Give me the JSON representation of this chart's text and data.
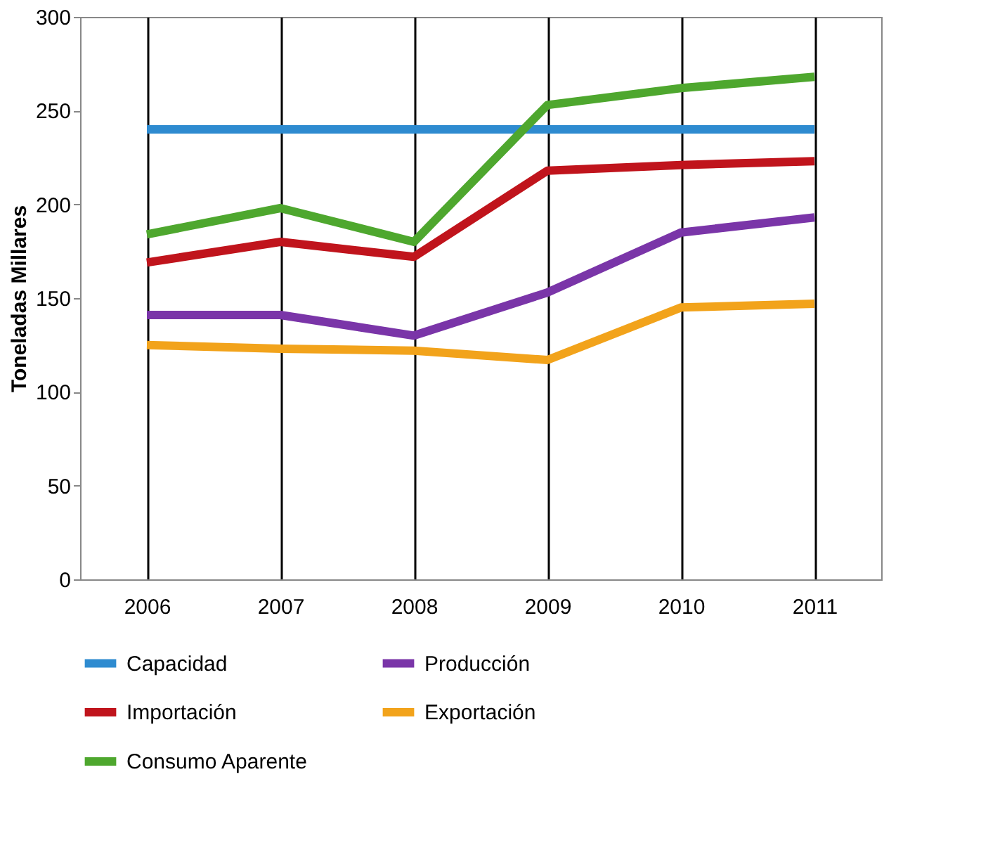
{
  "chart_data": {
    "type": "line",
    "ylabel": "Toneladas  Millares",
    "categories": [
      "2006",
      "2007",
      "2008",
      "2009",
      "2010",
      "2011"
    ],
    "series": [
      {
        "name": "Capacidad",
        "color": "#2e8bd0",
        "values": [
          240,
          240,
          240,
          240,
          240,
          240
        ]
      },
      {
        "name": "Producción",
        "color": "#7a35a8",
        "values": [
          141,
          141,
          130,
          153,
          185,
          193
        ]
      },
      {
        "name": "Importación",
        "color": "#c0141c",
        "values": [
          169,
          180,
          172,
          218,
          221,
          223
        ]
      },
      {
        "name": "Exportación",
        "color": "#f2a31b",
        "values": [
          125,
          123,
          122,
          117,
          145,
          147
        ]
      },
      {
        "name": "Consumo Aparente",
        "color": "#4ea72e",
        "values": [
          184,
          198,
          180,
          253,
          262,
          268
        ]
      }
    ],
    "ylim": [
      0,
      300
    ],
    "yticks": [
      0,
      50,
      100,
      150,
      200,
      250,
      300
    ],
    "grid": "x",
    "legend": "bottom",
    "marker": "none",
    "line_style": "solid"
  }
}
